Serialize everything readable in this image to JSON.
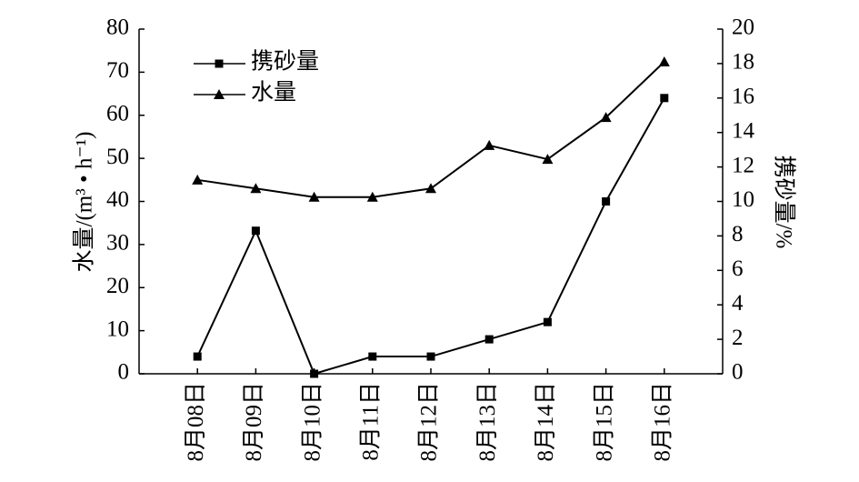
{
  "chart_data": {
    "type": "line",
    "categories": [
      "8月08日",
      "8月09日",
      "8月10日",
      "8月11日",
      "8月12日",
      "8月13日",
      "8月14日",
      "8月15日",
      "8月16日"
    ],
    "y_label": "水量/(m³ • h⁻¹)",
    "y2_label": "携砂量/%",
    "ylim": [
      0,
      80
    ],
    "yticks": [
      0,
      10,
      20,
      30,
      40,
      50,
      60,
      70,
      80
    ],
    "y2lim": [
      0,
      20
    ],
    "y2ticks": [
      0,
      2,
      4,
      6,
      8,
      10,
      12,
      14,
      16,
      18,
      20
    ],
    "series": [
      {
        "name": "携砂量",
        "color": "#000000",
        "axis": "y2",
        "marker": "square",
        "values": [
          1,
          8.3,
          0,
          1,
          1,
          2,
          3,
          10,
          16
        ]
      },
      {
        "name": "水量",
        "color": "#000000",
        "marker": "triangle",
        "values": [
          45,
          43,
          41,
          41,
          43,
          53,
          49.8,
          59.5,
          72.4
        ]
      }
    ],
    "legend": "upper-left",
    "grid": false
  }
}
